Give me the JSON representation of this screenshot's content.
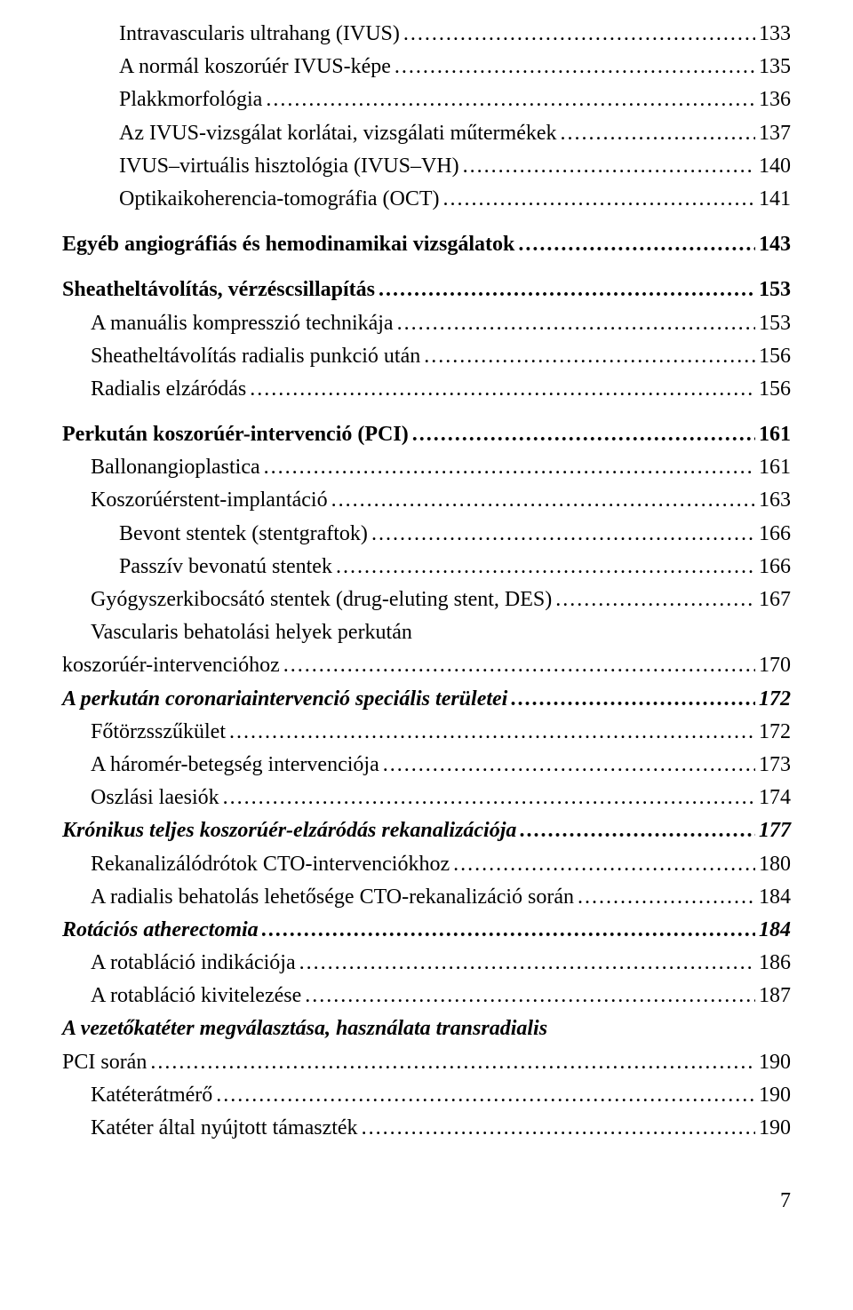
{
  "colors": {
    "background": "#ffffff",
    "text": "#000000"
  },
  "typography": {
    "font_family": "Georgia, Times New Roman, serif",
    "font_size_pt": 18,
    "line_height": 1.55
  },
  "leader_char": ".",
  "page_number": "7",
  "entries": [
    {
      "level": "2",
      "label": "Intravascularis ultrahang (IVUS)",
      "page": "133"
    },
    {
      "level": "2",
      "label": "A normál koszorúér IVUS-képe",
      "page": "135",
      "noleader_prefix": true
    },
    {
      "level": "2",
      "label": "Plakkmorfológia",
      "page": "136"
    },
    {
      "level": "2",
      "label": "Az IVUS-vizsgálat korlátai, vizsgálati műtermékek",
      "page": "137"
    },
    {
      "level": "2",
      "label": "IVUS–virtuális hisztológia (IVUS–VH)",
      "page": "140"
    },
    {
      "level": "2",
      "label": "Optikaikoherencia-tomográfia (OCT)",
      "page": "141"
    },
    {
      "level": "spacer"
    },
    {
      "level": "0",
      "label": "Egyéb angiográfiás és hemodinamikai vizsgálatok",
      "page": "143"
    },
    {
      "level": "spacer"
    },
    {
      "level": "0",
      "label": "Sheatheltávolítás, vérzéscsillapítás",
      "page": "153"
    },
    {
      "level": "1",
      "label": "A manuális kompresszió technikája",
      "page": "153"
    },
    {
      "level": "1",
      "label": "Sheatheltávolítás radialis punkció után",
      "page": "156"
    },
    {
      "level": "1",
      "label": "Radialis elzáródás",
      "page": "156"
    },
    {
      "level": "spacer"
    },
    {
      "level": "0",
      "label": "Perkután koszorúér-intervenció (PCI)",
      "page": "161"
    },
    {
      "level": "1",
      "label": "Ballonangioplastica",
      "page": "161"
    },
    {
      "level": "1",
      "label": "Koszorúérstent-implantáció",
      "page": "163"
    },
    {
      "level": "2",
      "label": "Bevont stentek (stentgraftok)",
      "page": "166"
    },
    {
      "level": "2",
      "label": "Passzív bevonatú stentek",
      "page": "166"
    },
    {
      "level": "1",
      "label": "Gyógyszerkibocsátó stentek (drug-eluting stent, DES)",
      "page": "167"
    },
    {
      "level": "1",
      "label": "Vascularis behatolási helyek perkután",
      "page": "",
      "nocont": true
    },
    {
      "level": "cont",
      "label": "koszorúér-intervencióhoz",
      "page": "170"
    },
    {
      "level": "0i",
      "label": "A perkután coronariaintervenció speciális területei",
      "page": "172"
    },
    {
      "level": "1",
      "label": "Főtörzsszűkület",
      "page": "172"
    },
    {
      "level": "1",
      "label": "A háromér-betegség intervenciója",
      "page": "173"
    },
    {
      "level": "1",
      "label": "Oszlási laesiók",
      "page": "174"
    },
    {
      "level": "0i",
      "label": "Krónikus teljes koszorúér-elzáródás rekanalizációja",
      "page": "177"
    },
    {
      "level": "1",
      "label": "Rekanalizálódrótok CTO-intervenciókhoz",
      "page": "180"
    },
    {
      "level": "1",
      "label": "A radialis behatolás lehetősége CTO-rekanalizáció során",
      "page": "184"
    },
    {
      "level": "0i",
      "label": "Rotációs atherectomia",
      "page": "184"
    },
    {
      "level": "1",
      "label": "A rotabláció indikációja",
      "page": "186"
    },
    {
      "level": "1",
      "label": "A rotabláció kivitelezése",
      "page": "187"
    },
    {
      "level": "0i",
      "label": "A vezetőkatéter megválasztása, használata transradialis",
      "page": "",
      "nocont": true
    },
    {
      "level": "cont-0i",
      "label": "PCI során",
      "page": "190"
    },
    {
      "level": "1",
      "label": "Katéterátmérő",
      "page": "190"
    },
    {
      "level": "1",
      "label": "Katéter által nyújtott támaszték",
      "page": "190"
    }
  ]
}
